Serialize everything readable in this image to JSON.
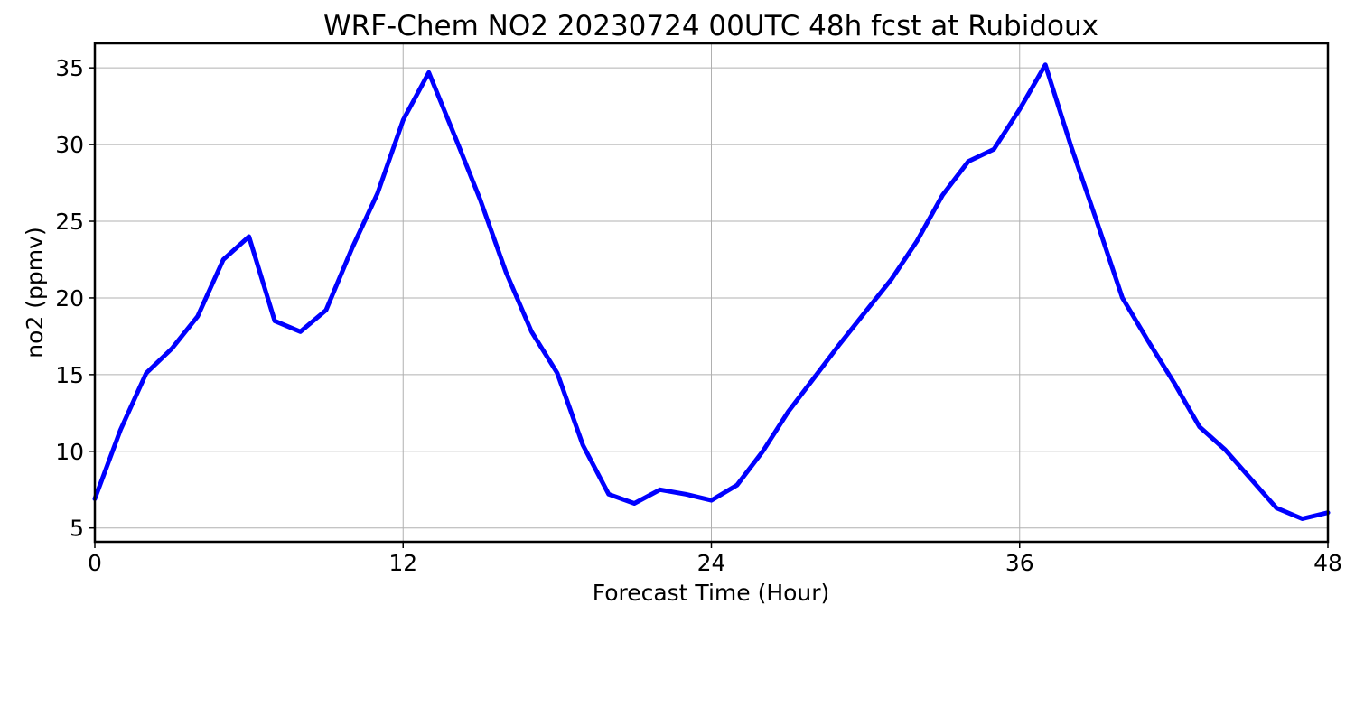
{
  "chart_data": {
    "type": "line",
    "title": "WRF-Chem NO2  20230724 00UTC 48h fcst at Rubidoux",
    "xlabel": "Forecast Time (Hour)",
    "ylabel": "no2  (ppmv)",
    "xlim": [
      0,
      48
    ],
    "ylim": [
      4.1,
      36.6
    ],
    "xticks": [
      0,
      12,
      24,
      36,
      48
    ],
    "yticks": [
      5,
      10,
      15,
      20,
      25,
      30,
      35
    ],
    "grid": true,
    "legend": "none",
    "series": [
      {
        "color": "#0000ff",
        "x": [
          0,
          1,
          2,
          3,
          4,
          5,
          6,
          7,
          8,
          9,
          10,
          11,
          12,
          13,
          14,
          15,
          16,
          17,
          18,
          19,
          20,
          21,
          22,
          23,
          24,
          25,
          26,
          27,
          28,
          29,
          30,
          31,
          32,
          33,
          34,
          35,
          36,
          37,
          38,
          39,
          40,
          41,
          42,
          43,
          44,
          45,
          46,
          47,
          48
        ],
        "y": [
          6.9,
          11.4,
          15.1,
          16.7,
          18.8,
          22.5,
          24.0,
          18.5,
          17.8,
          19.2,
          23.2,
          26.8,
          31.6,
          34.7,
          30.6,
          26.4,
          21.7,
          17.8,
          15.1,
          10.4,
          7.2,
          6.6,
          7.5,
          7.2,
          6.8,
          7.8,
          10.0,
          12.6,
          14.8,
          17.0,
          19.1,
          21.2,
          23.7,
          26.7,
          28.9,
          29.7,
          32.3,
          35.2,
          29.9,
          25.0,
          20.0,
          17.2,
          14.5,
          11.6,
          10.1,
          8.2,
          6.3,
          5.6,
          6.0
        ]
      }
    ]
  }
}
